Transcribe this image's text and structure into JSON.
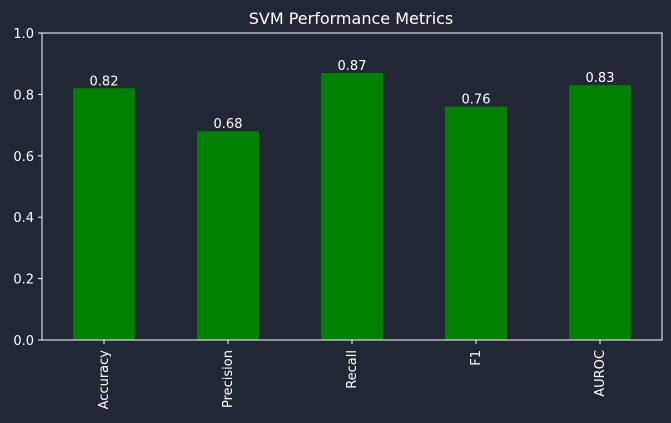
{
  "chart_data": {
    "type": "bar",
    "title": "SVM Performance Metrics",
    "xlabel": "",
    "ylabel": "",
    "categories": [
      "Accuracy",
      "Precision",
      "Recall",
      "F1",
      "AUROC"
    ],
    "values": [
      0.82,
      0.68,
      0.87,
      0.76,
      0.83
    ],
    "value_labels": [
      "0.82",
      "0.68",
      "0.87",
      "0.76",
      "0.83"
    ],
    "ylim": [
      0,
      1.0
    ],
    "yticks": [
      0.0,
      0.2,
      0.4,
      0.6,
      0.8,
      1.0
    ],
    "ytick_labels": [
      "0.0",
      "0.2",
      "0.4",
      "0.6",
      "0.8",
      "1.0"
    ],
    "grid": false,
    "legend": "none",
    "colors": {
      "background": "#222735",
      "bar": "#008000",
      "axis": "#ffffff",
      "text": "#ffffff"
    }
  }
}
